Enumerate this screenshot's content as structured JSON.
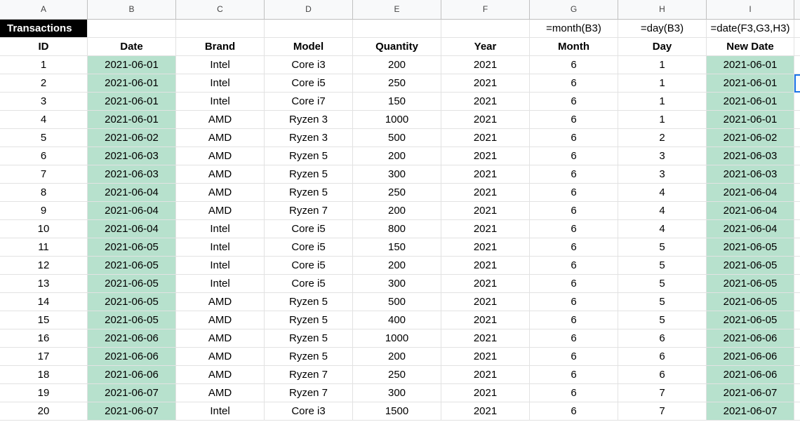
{
  "columns": [
    "A",
    "B",
    "C",
    "D",
    "E",
    "F",
    "G",
    "H",
    "I",
    ""
  ],
  "title": "Transactions",
  "formulas": {
    "g": "=month(B3)",
    "h": "=day(B3)",
    "i": "=date(F3,G3,H3)"
  },
  "headers": [
    "ID",
    "Date",
    "Brand",
    "Model",
    "Quantity",
    "Year",
    "Month",
    "Day",
    "New Date"
  ],
  "rows": [
    [
      "1",
      "2021-06-01",
      "Intel",
      "Core i3",
      "200",
      "2021",
      "6",
      "1",
      "2021-06-01"
    ],
    [
      "2",
      "2021-06-01",
      "Intel",
      "Core i5",
      "250",
      "2021",
      "6",
      "1",
      "2021-06-01"
    ],
    [
      "3",
      "2021-06-01",
      "Intel",
      "Core i7",
      "150",
      "2021",
      "6",
      "1",
      "2021-06-01"
    ],
    [
      "4",
      "2021-06-01",
      "AMD",
      "Ryzen 3",
      "1000",
      "2021",
      "6",
      "1",
      "2021-06-01"
    ],
    [
      "5",
      "2021-06-02",
      "AMD",
      "Ryzen 3",
      "500",
      "2021",
      "6",
      "2",
      "2021-06-02"
    ],
    [
      "6",
      "2021-06-03",
      "AMD",
      "Ryzen 5",
      "200",
      "2021",
      "6",
      "3",
      "2021-06-03"
    ],
    [
      "7",
      "2021-06-03",
      "AMD",
      "Ryzen 5",
      "300",
      "2021",
      "6",
      "3",
      "2021-06-03"
    ],
    [
      "8",
      "2021-06-04",
      "AMD",
      "Ryzen 5",
      "250",
      "2021",
      "6",
      "4",
      "2021-06-04"
    ],
    [
      "9",
      "2021-06-04",
      "AMD",
      "Ryzen 7",
      "200",
      "2021",
      "6",
      "4",
      "2021-06-04"
    ],
    [
      "10",
      "2021-06-04",
      "Intel",
      "Core i5",
      "800",
      "2021",
      "6",
      "4",
      "2021-06-04"
    ],
    [
      "11",
      "2021-06-05",
      "Intel",
      "Core i5",
      "150",
      "2021",
      "6",
      "5",
      "2021-06-05"
    ],
    [
      "12",
      "2021-06-05",
      "Intel",
      "Core i5",
      "200",
      "2021",
      "6",
      "5",
      "2021-06-05"
    ],
    [
      "13",
      "2021-06-05",
      "Intel",
      "Core i5",
      "300",
      "2021",
      "6",
      "5",
      "2021-06-05"
    ],
    [
      "14",
      "2021-06-05",
      "AMD",
      "Ryzen 5",
      "500",
      "2021",
      "6",
      "5",
      "2021-06-05"
    ],
    [
      "15",
      "2021-06-05",
      "AMD",
      "Ryzen 5",
      "400",
      "2021",
      "6",
      "5",
      "2021-06-05"
    ],
    [
      "16",
      "2021-06-06",
      "AMD",
      "Ryzen 5",
      "1000",
      "2021",
      "6",
      "6",
      "2021-06-06"
    ],
    [
      "17",
      "2021-06-06",
      "AMD",
      "Ryzen 5",
      "200",
      "2021",
      "6",
      "6",
      "2021-06-06"
    ],
    [
      "18",
      "2021-06-06",
      "AMD",
      "Ryzen 7",
      "250",
      "2021",
      "6",
      "6",
      "2021-06-06"
    ],
    [
      "19",
      "2021-06-07",
      "AMD",
      "Ryzen 7",
      "300",
      "2021",
      "6",
      "7",
      "2021-06-07"
    ],
    [
      "20",
      "2021-06-07",
      "Intel",
      "Core i3",
      "1500",
      "2021",
      "6",
      "7",
      "2021-06-07"
    ]
  ],
  "colors": {
    "highlight": "#b7e1cd",
    "selection": "#1a73e8",
    "title_bg": "#000000"
  }
}
